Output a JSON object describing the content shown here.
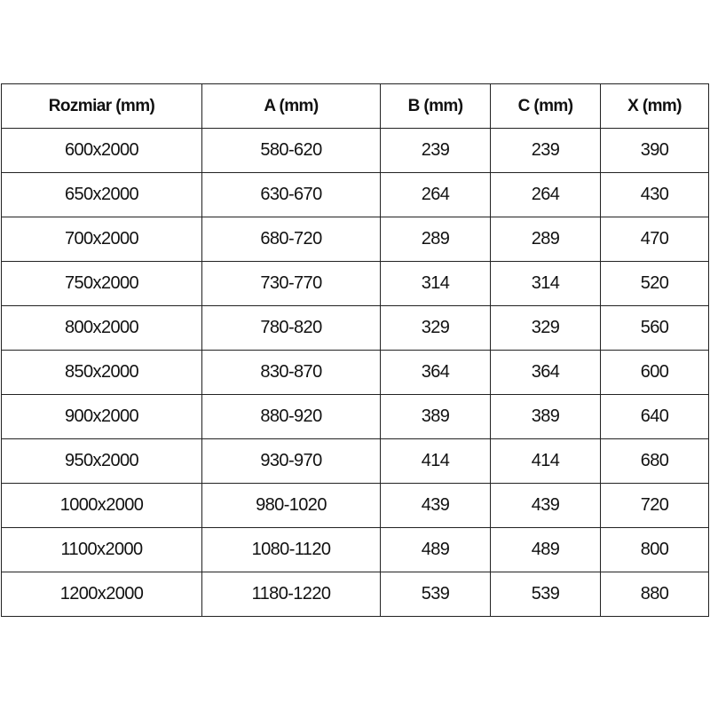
{
  "table": {
    "headers": [
      "Rozmiar (mm)",
      "A (mm)",
      "B (mm)",
      "C (mm)",
      "X (mm)"
    ],
    "rows": [
      [
        "600x2000",
        "580-620",
        "239",
        "239",
        "390"
      ],
      [
        "650x2000",
        "630-670",
        "264",
        "264",
        "430"
      ],
      [
        "700x2000",
        "680-720",
        "289",
        "289",
        "470"
      ],
      [
        "750x2000",
        "730-770",
        "314",
        "314",
        "520"
      ],
      [
        "800x2000",
        "780-820",
        "329",
        "329",
        "560"
      ],
      [
        "850x2000",
        "830-870",
        "364",
        "364",
        "600"
      ],
      [
        "900x2000",
        "880-920",
        "389",
        "389",
        "640"
      ],
      [
        "950x2000",
        "930-970",
        "414",
        "414",
        "680"
      ],
      [
        "1000x2000",
        "980-1020",
        "439",
        "439",
        "720"
      ],
      [
        "1100x2000",
        "1080-1120",
        "489",
        "489",
        "800"
      ],
      [
        "1200x2000",
        "1180-1220",
        "539",
        "539",
        "880"
      ]
    ]
  }
}
